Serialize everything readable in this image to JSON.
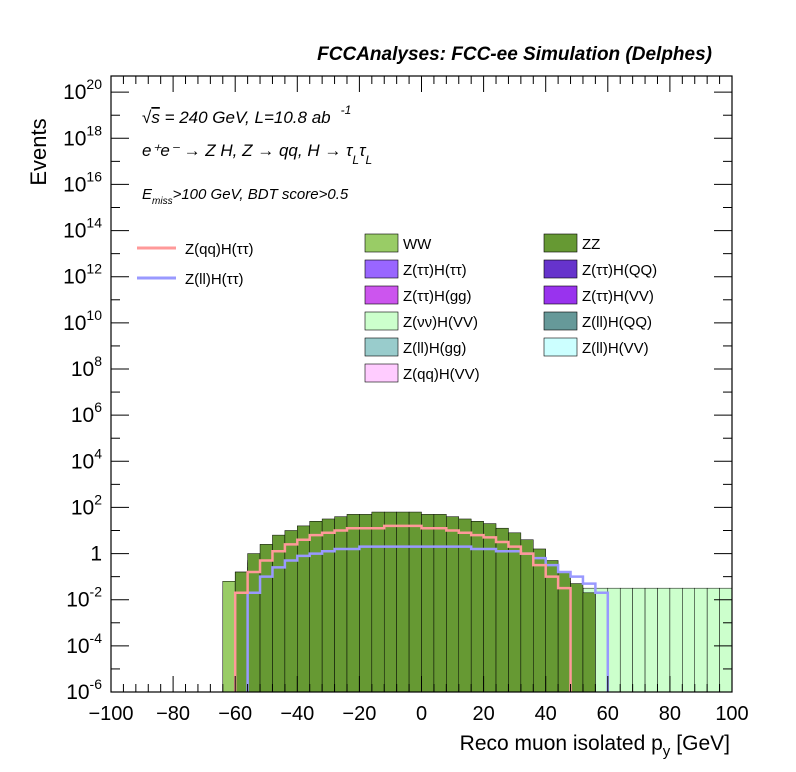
{
  "chart_data": {
    "type": "area",
    "title": "FCCAnalyses: FCC-ee Simulation (Delphes)",
    "xlabel": "Reco muon isolated p",
    "xlabel_sub": "y",
    "xlabel_unit": "[GeV]",
    "ylabel": "Events",
    "xlim": [
      -100,
      100
    ],
    "ylim_log10": [
      -6,
      20.7
    ],
    "y_scale": "log",
    "xticks": [
      "−100",
      "−80",
      "−60",
      "−40",
      "−20",
      "0",
      "20",
      "40",
      "60",
      "80",
      "100"
    ],
    "yticks": [
      {
        "base": "10",
        "exp": "20",
        "e": 20
      },
      {
        "base": "10",
        "exp": "18",
        "e": 18
      },
      {
        "base": "10",
        "exp": "16",
        "e": 16
      },
      {
        "base": "10",
        "exp": "14",
        "e": 14
      },
      {
        "base": "10",
        "exp": "12",
        "e": 12
      },
      {
        "base": "10",
        "exp": "10",
        "e": 10
      },
      {
        "base": "10",
        "exp": "8",
        "e": 8
      },
      {
        "base": "10",
        "exp": "6",
        "e": 6
      },
      {
        "base": "10",
        "exp": "4",
        "e": 4
      },
      {
        "base": "10",
        "exp": "2",
        "e": 2
      },
      {
        "base": "1",
        "exp": "",
        "e": 0
      },
      {
        "base": "10",
        "exp": "-2",
        "e": -2
      },
      {
        "base": "10",
        "exp": "-4",
        "e": -4
      },
      {
        "base": "10",
        "exp": "-6",
        "e": -6
      }
    ],
    "bin_edges_start": -100,
    "bin_width": 4,
    "annotations": {
      "line1_sqrt": "√",
      "line1_s": "s",
      "line1_rest": " = 240 GeV, L=10.8 ab",
      "line1_sup": "-1",
      "line2": "e⁺e⁻ → Z H, Z  → qq, H  → τ",
      "line2_sub1": "L",
      "line2_tau": "τ",
      "line2_sub2": "L",
      "line3_E": "E",
      "line3_sub": "miss",
      "line3_rest": ">100 GeV, BDT score>0.5"
    },
    "series": [
      {
        "name": "Z(qq)H(VV)",
        "color": "#ffccff",
        "log10": [
          null,
          null,
          null,
          null,
          null,
          null,
          null,
          null,
          null,
          -1.7,
          -1.7,
          -1.6,
          -1.5,
          -1.4,
          -1.4,
          -1.3,
          -1.3,
          -1.2,
          -1.2,
          -1.2,
          -1.2,
          -1.2,
          -1.2,
          -1.2,
          -1.3,
          -1.3,
          -1.3,
          -1.4,
          -1.4,
          -1.5,
          -1.6,
          -1.7,
          -1.7,
          -1.7,
          null,
          null,
          null,
          null,
          null,
          null,
          null,
          null,
          null,
          null,
          null,
          null,
          null,
          null,
          null,
          null
        ]
      },
      {
        "name": "Z(ll)H(gg)",
        "color": "#99cccc",
        "log10": [
          null,
          null,
          null,
          null,
          null,
          null,
          null,
          null,
          null,
          null,
          null,
          null,
          null,
          null,
          null,
          null,
          null,
          -1.8,
          -1.8,
          -1.8,
          -1.8,
          -1.8,
          -1.8,
          -1.8,
          -1.8,
          -1.8,
          -1.8,
          -1.8,
          -1.8,
          -1.8,
          -1.8,
          -1.8,
          null,
          null,
          null,
          null,
          null,
          null,
          null,
          null,
          null,
          null,
          null,
          null,
          null,
          null,
          null,
          null,
          null,
          null
        ]
      },
      {
        "name": "Z(νν)H(VV)",
        "color": "#ccffcc",
        "log10": [
          null,
          null,
          null,
          null,
          null,
          null,
          null,
          null,
          null,
          null,
          null,
          -0.3,
          -0.1,
          0.0,
          0.1,
          0.2,
          0.2,
          0.3,
          0.3,
          0.3,
          0.3,
          0.3,
          0.3,
          0.3,
          0.3,
          0.3,
          0.3,
          0.2,
          0.2,
          0.1,
          0.0,
          -0.1,
          -0.2,
          -0.4,
          -0.7,
          -1.0,
          -1.5,
          -1.5,
          -1.5,
          -1.5,
          -1.5,
          -1.5,
          -1.5,
          -1.5,
          -1.5,
          -1.5,
          -1.5,
          -1.5,
          -1.5,
          -1.5
        ]
      },
      {
        "name": "Z(ττ)H(gg)",
        "color": "#cc55ee",
        "log10": [
          null,
          null,
          null,
          null,
          null,
          null,
          null,
          null,
          null,
          null,
          null,
          null,
          null,
          null,
          null,
          -1.4,
          -1.4,
          -0.9,
          -0.9,
          -0.8,
          -0.8,
          -0.8,
          -0.8,
          -0.8,
          -0.8,
          -0.8,
          -0.8,
          -0.8,
          -0.9,
          -0.9,
          -0.9,
          -1.1,
          -1.3,
          null,
          null,
          null,
          null,
          null,
          null,
          null,
          null,
          null,
          null,
          null,
          null,
          null,
          null,
          null,
          null,
          null
        ]
      },
      {
        "name": "Z(ττ)H(ττ)",
        "color": "#9966ff",
        "log10": [
          null,
          null,
          null,
          null,
          null,
          null,
          null,
          null,
          null,
          null,
          null,
          null,
          null,
          null,
          -1.7,
          -1.2,
          -0.9,
          -0.7,
          -0.5,
          -0.4,
          -0.3,
          -0.3,
          -0.3,
          -0.3,
          -0.3,
          -0.3,
          -0.3,
          -0.4,
          -0.5,
          -0.6,
          -0.8,
          -1.0,
          -1.3,
          -1.6,
          null,
          null,
          null,
          null,
          null,
          null,
          null,
          null,
          null,
          null,
          null,
          null,
          null,
          null,
          null,
          null
        ]
      },
      {
        "name": "Z(ττ)H(VV)",
        "color": "#9933ee",
        "log10": [
          null,
          null,
          null,
          null,
          null,
          null,
          null,
          null,
          null,
          null,
          null,
          null,
          null,
          -1.6,
          -1.2,
          -0.8,
          -0.6,
          -0.4,
          -0.3,
          -0.2,
          -0.1,
          -0.1,
          -0.1,
          -0.1,
          -0.1,
          -0.1,
          -0.1,
          -0.2,
          -0.3,
          -0.4,
          -0.5,
          -0.7,
          -1.0,
          -1.4,
          null,
          null,
          null,
          null,
          null,
          null,
          null,
          null,
          null,
          null,
          null,
          null,
          null,
          null,
          null,
          null
        ]
      },
      {
        "name": "Z(ττ)H(QQ)",
        "color": "#6633cc",
        "log10": [
          null,
          null,
          null,
          null,
          null,
          null,
          null,
          null,
          null,
          null,
          null,
          null,
          null,
          -1.5,
          -0.9,
          -0.6,
          -0.4,
          -0.2,
          -0.1,
          0.0,
          0.1,
          0.1,
          0.1,
          0.1,
          0.1,
          0.1,
          0.1,
          0.0,
          -0.1,
          -0.2,
          -0.3,
          -0.5,
          -0.8,
          -1.2,
          null,
          null,
          null,
          null,
          null,
          null,
          null,
          null,
          null,
          null,
          null,
          null,
          null,
          null,
          null,
          null
        ]
      },
      {
        "name": "Z(ll)H(ττ)",
        "color": "#9999ff",
        "line": true,
        "log10": [
          null,
          null,
          null,
          null,
          null,
          null,
          null,
          null,
          null,
          null,
          null,
          -1.7,
          -1.0,
          -0.6,
          -0.3,
          -0.1,
          0.0,
          0.1,
          0.2,
          0.2,
          0.3,
          0.3,
          0.3,
          0.3,
          0.3,
          0.3,
          0.3,
          0.3,
          0.3,
          0.2,
          0.2,
          0.1,
          0.1,
          0.0,
          -0.2,
          -0.5,
          -0.8,
          -1.0,
          -1.3,
          -1.7,
          null,
          null,
          null,
          null,
          null,
          null,
          null,
          null,
          null,
          null
        ]
      },
      {
        "name": "Z(ll)H(VV)",
        "color": "#ccffff",
        "log10": [
          null,
          null,
          null,
          null,
          null,
          null,
          null,
          null,
          null,
          null,
          null,
          -1.5,
          -0.8,
          -0.4,
          -0.1,
          0.1,
          0.2,
          0.3,
          0.4,
          0.5,
          0.5,
          0.5,
          0.5,
          0.5,
          0.5,
          0.5,
          0.5,
          0.4,
          0.4,
          0.3,
          0.2,
          0.1,
          -0.1,
          -0.3,
          -0.6,
          -1.0,
          -1.3,
          -1.5,
          null,
          null,
          null,
          null,
          null,
          null,
          null,
          null,
          null,
          null,
          null,
          null
        ]
      },
      {
        "name": "WW",
        "color": "#99cc66",
        "log10": [
          null,
          null,
          null,
          null,
          null,
          null,
          null,
          null,
          null,
          -1.2,
          -0.8,
          -0.4,
          -0.1,
          0.1,
          0.3,
          0.4,
          0.5,
          0.6,
          0.6,
          0.7,
          0.7,
          0.7,
          0.7,
          0.7,
          0.7,
          0.6,
          0.6,
          0.5,
          0.4,
          0.3,
          0.2,
          0.0,
          -0.2,
          -0.4,
          -0.7,
          -1.0,
          -1.3,
          -1.5,
          null,
          null,
          null,
          null,
          null,
          null,
          null,
          null,
          null,
          null,
          null,
          null
        ]
      },
      {
        "name": "Z(ll)H(QQ)",
        "color": "#669999",
        "log10": [
          null,
          null,
          null,
          null,
          null,
          null,
          null,
          null,
          null,
          null,
          -1.3,
          -0.6,
          0.0,
          0.4,
          0.7,
          0.9,
          1.0,
          1.1,
          1.2,
          1.2,
          1.3,
          1.3,
          1.3,
          1.3,
          1.3,
          1.2,
          1.2,
          1.1,
          1.0,
          0.9,
          0.8,
          0.6,
          0.4,
          0.0,
          -0.4,
          -0.8,
          -1.2,
          -1.5,
          null,
          null,
          null,
          null,
          null,
          null,
          null,
          null,
          null,
          null,
          null,
          null
        ]
      },
      {
        "name": "ZZ",
        "color": "#669933",
        "log10": [
          null,
          null,
          null,
          null,
          null,
          null,
          null,
          null,
          null,
          null,
          -0.8,
          0.0,
          0.4,
          0.8,
          1.0,
          1.2,
          1.4,
          1.5,
          1.6,
          1.7,
          1.7,
          1.8,
          1.8,
          1.8,
          1.8,
          1.7,
          1.7,
          1.6,
          1.5,
          1.4,
          1.3,
          1.1,
          0.9,
          0.6,
          0.2,
          -0.3,
          -0.8,
          -1.3,
          -1.7,
          null,
          null,
          null,
          null,
          null,
          null,
          null,
          null,
          null,
          null,
          null
        ]
      },
      {
        "name": "Z(qq)H(ττ)",
        "color": "#ff9999",
        "line": true,
        "log10": [
          null,
          null,
          null,
          null,
          null,
          null,
          null,
          null,
          null,
          null,
          -1.7,
          -0.8,
          -0.3,
          0.1,
          0.4,
          0.6,
          0.8,
          0.9,
          1.0,
          1.1,
          1.1,
          1.1,
          1.2,
          1.2,
          1.2,
          1.1,
          1.1,
          1.0,
          0.9,
          0.8,
          0.7,
          0.5,
          0.3,
          0.0,
          -0.5,
          -1.0,
          -1.5,
          null,
          null,
          null,
          null,
          null,
          null,
          null,
          null,
          null,
          null,
          null,
          null,
          null
        ]
      }
    ],
    "legend": {
      "lines": [
        {
          "label": "Z(qq)H(ττ)",
          "color": "#ff9999"
        },
        {
          "label": "Z(ll)H(ττ)",
          "color": "#9999ff"
        }
      ],
      "boxes": [
        {
          "label": "WW",
          "color": "#99cc66"
        },
        {
          "label": "ZZ",
          "color": "#669933"
        },
        {
          "label": "Z(ττ)H(ττ)",
          "color": "#9966ff"
        },
        {
          "label": "Z(ττ)H(QQ)",
          "color": "#6633cc"
        },
        {
          "label": "Z(ττ)H(gg)",
          "color": "#cc55ee"
        },
        {
          "label": "Z(ττ)H(VV)",
          "color": "#9933ee"
        },
        {
          "label": "Z(νν)H(VV)",
          "color": "#ccffcc"
        },
        {
          "label": "Z(ll)H(QQ)",
          "color": "#669999"
        },
        {
          "label": "Z(ll)H(gg)",
          "color": "#99cccc"
        },
        {
          "label": "Z(ll)H(VV)",
          "color": "#ccffff"
        },
        {
          "label": "Z(qq)H(VV)",
          "color": "#ffccff"
        }
      ]
    }
  }
}
